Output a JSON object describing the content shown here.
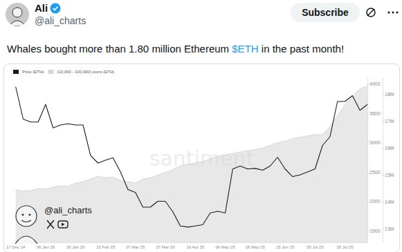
{
  "post": {
    "author": "Ali",
    "handle": "@ali_charts",
    "button": "Subscribe",
    "text": "Whales bought more than 1.80 million Ethereum $ETH in the past month!"
  },
  "chart_data": {
    "type": "line",
    "watermark": "santiment",
    "annotations": [
      "@ali_charts"
    ],
    "legend": "top-left",
    "grid": false,
    "categories": [
      "17 Dec 24",
      null,
      null,
      null,
      "06 Jan 25",
      null,
      null,
      null,
      "26 Jan 25",
      null,
      null,
      null,
      "15 Feb 25",
      null,
      null,
      null,
      "07 Mar 25",
      null,
      null,
      null,
      "27 Mar 25",
      null,
      null,
      null,
      "16 Apr 25",
      null,
      null,
      null,
      "06 May 25",
      null,
      null,
      null,
      "26 May 25",
      null,
      null,
      null,
      "15 Jun 25",
      null,
      null,
      null,
      "05 Jul 25",
      null,
      null,
      null,
      "25 Jul 25",
      null,
      null,
      null
    ],
    "series": [
      {
        "name": "(10,000 - 100,000) coins (ETH)",
        "type": "area",
        "axis": "y2",
        "color": "#d6d6d6",
        "values": [
          14450000,
          14400000,
          14420000,
          14500000,
          14480000,
          14550000,
          14600000,
          14580000,
          14700000,
          14750000,
          14850000,
          14950000,
          14900000,
          14920000,
          14800000,
          14750000,
          14700000,
          14850000,
          14900000,
          15000000,
          15100000,
          15200000,
          15350000,
          15400000,
          15450000,
          15500000,
          15600000,
          15700000,
          15750000,
          15800000,
          15850000,
          15900000,
          15950000,
          16000000,
          16100000,
          16200000,
          16250000,
          16350000,
          16400000,
          16450000,
          16500000,
          16500000,
          16800000,
          17200000,
          17600000,
          17900000,
          18200000,
          18300000
        ]
      },
      {
        "name": "Price (ETH)",
        "type": "line",
        "color": "#1a1a1a",
        "values": [
          3950,
          3400,
          3350,
          3350,
          3650,
          3250,
          3300,
          3320,
          3300,
          3300,
          2780,
          2650,
          2700,
          2740,
          2500,
          2200,
          2150,
          1900,
          1900,
          2000,
          2000,
          1820,
          1580,
          1560,
          1580,
          1600,
          1800,
          1830,
          1800,
          2550,
          2600,
          2550,
          2560,
          2530,
          2600,
          2750,
          2550,
          2420,
          2450,
          2500,
          2550,
          2950,
          3100,
          3700,
          3700,
          3800,
          3550,
          3650
        ]
      }
    ],
    "ylim": [
      1300,
      4100
    ],
    "yticks": [
      1500,
      2000,
      2500,
      3000,
      3500,
      4000
    ],
    "y2lim": [
      12500000,
      18600000
    ],
    "y2ticks": [
      {
        "value": 13000000,
        "label": "13M"
      },
      {
        "value": 14000000,
        "label": "14M"
      },
      {
        "value": 15000000,
        "label": "15M"
      },
      {
        "value": 16000000,
        "label": "16M"
      },
      {
        "value": 17000000,
        "label": "17M"
      },
      {
        "value": 18000000,
        "label": "18M"
      }
    ]
  }
}
